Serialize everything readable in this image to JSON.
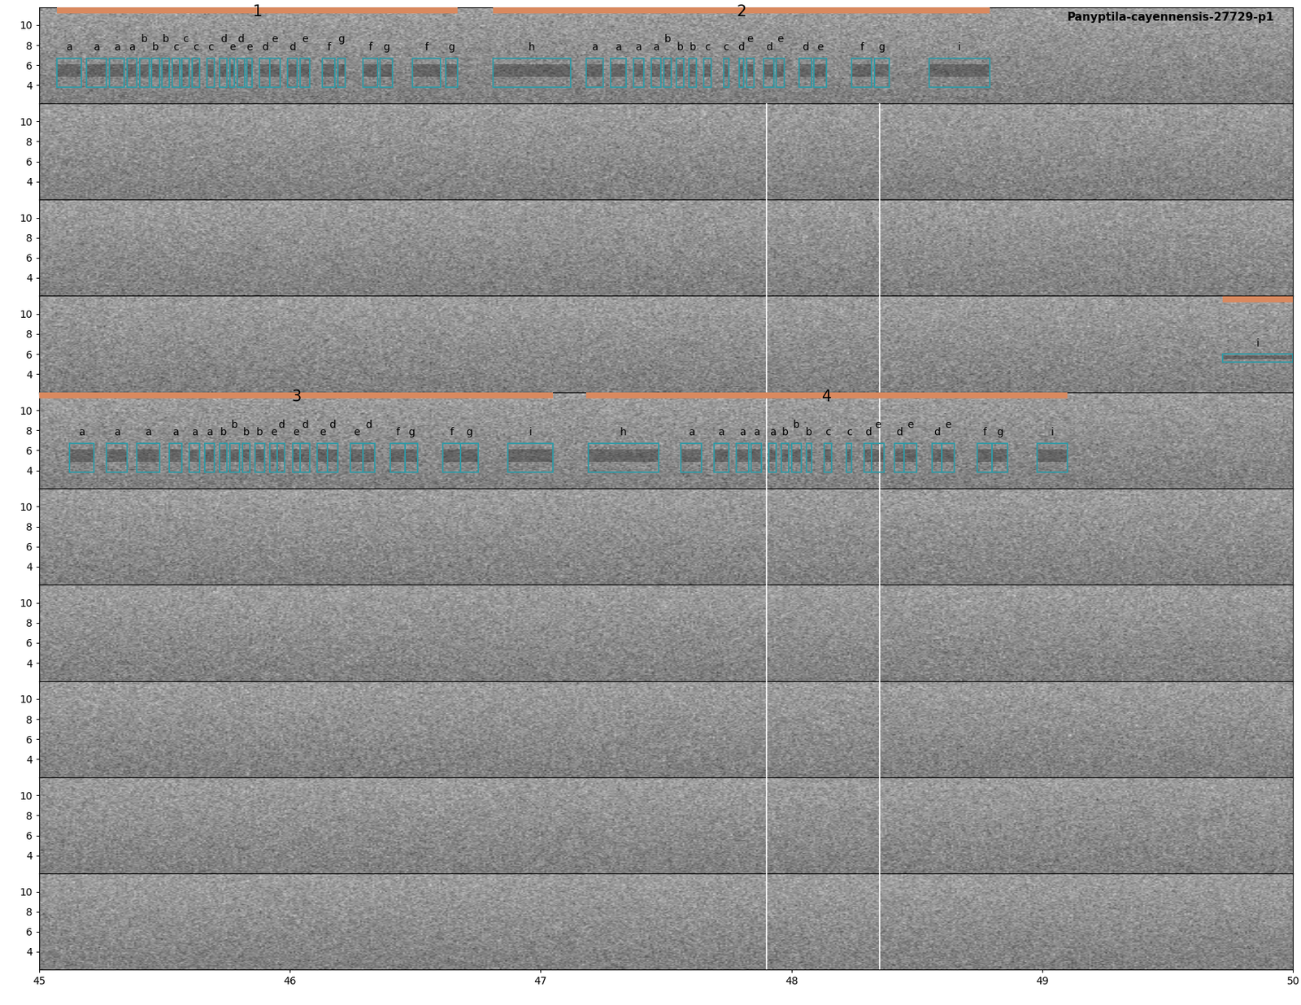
{
  "chart_data": {
    "type": "spectrogram",
    "title": "Panyptila-cayennensis-27729-p1",
    "rows": 10,
    "xlim": [
      45,
      50
    ],
    "xticks": [
      45,
      46,
      47,
      48,
      49,
      50
    ],
    "ylim": [
      2.2,
      11.8
    ],
    "yticks": [
      4,
      6,
      8,
      10
    ],
    "box_freq": [
      3.8,
      6.7
    ],
    "separators": {
      "x": [
        47.9,
        48.35
      ],
      "rows": [
        2,
        3,
        4,
        5,
        6,
        7,
        8,
        9,
        10
      ]
    },
    "bouts": [
      {
        "row": 1,
        "start": 45.07,
        "end": 46.67,
        "label": "1"
      },
      {
        "row": 1,
        "start": 46.81,
        "end": 48.79,
        "label": "2"
      },
      {
        "row": 4,
        "start": 49.72,
        "end": 50.0
      },
      {
        "row": 5,
        "start": 45.0,
        "end": 47.05,
        "label": "3"
      },
      {
        "row": 5,
        "start": 47.18,
        "end": 49.1,
        "label": "4"
      }
    ],
    "syllables": [
      {
        "row": 1,
        "start": 45.07,
        "end": 45.17,
        "label": "a"
      },
      {
        "row": 1,
        "start": 45.19,
        "end": 45.27,
        "label": "a"
      },
      {
        "row": 1,
        "start": 45.28,
        "end": 45.34,
        "label": "a"
      },
      {
        "row": 1,
        "start": 45.35,
        "end": 45.39,
        "label": "a"
      },
      {
        "row": 1,
        "start": 45.4,
        "end": 45.44,
        "label": "b"
      },
      {
        "row": 1,
        "start": 45.45,
        "end": 45.48,
        "label": "b"
      },
      {
        "row": 1,
        "start": 45.49,
        "end": 45.52,
        "label": "b"
      },
      {
        "row": 1,
        "start": 45.53,
        "end": 45.56,
        "label": "c"
      },
      {
        "row": 1,
        "start": 45.57,
        "end": 45.6,
        "label": "c"
      },
      {
        "row": 1,
        "start": 45.61,
        "end": 45.64,
        "label": "c"
      },
      {
        "row": 1,
        "start": 45.67,
        "end": 45.7,
        "label": "c"
      },
      {
        "row": 1,
        "start": 45.72,
        "end": 45.75,
        "label": "d"
      },
      {
        "row": 1,
        "start": 45.76,
        "end": 45.78,
        "label": "e"
      },
      {
        "row": 1,
        "start": 45.79,
        "end": 45.82,
        "label": "d"
      },
      {
        "row": 1,
        "start": 45.83,
        "end": 45.85,
        "label": "e"
      },
      {
        "row": 1,
        "start": 45.88,
        "end": 45.92,
        "label": "d"
      },
      {
        "row": 1,
        "start": 45.92,
        "end": 45.96,
        "label": "e"
      },
      {
        "row": 1,
        "start": 45.99,
        "end": 46.03,
        "label": "d"
      },
      {
        "row": 1,
        "start": 46.04,
        "end": 46.08,
        "label": "e"
      },
      {
        "row": 1,
        "start": 46.13,
        "end": 46.18,
        "label": "f"
      },
      {
        "row": 1,
        "start": 46.19,
        "end": 46.22,
        "label": "g"
      },
      {
        "row": 1,
        "start": 46.29,
        "end": 46.35,
        "label": "f"
      },
      {
        "row": 1,
        "start": 46.36,
        "end": 46.41,
        "label": "g"
      },
      {
        "row": 1,
        "start": 46.49,
        "end": 46.6,
        "label": "f"
      },
      {
        "row": 1,
        "start": 46.62,
        "end": 46.67,
        "label": "g"
      },
      {
        "row": 1,
        "start": 46.81,
        "end": 47.12,
        "label": "h"
      },
      {
        "row": 1,
        "start": 47.18,
        "end": 47.25,
        "label": "a"
      },
      {
        "row": 1,
        "start": 47.28,
        "end": 47.34,
        "label": "a"
      },
      {
        "row": 1,
        "start": 47.37,
        "end": 47.41,
        "label": "a"
      },
      {
        "row": 1,
        "start": 47.44,
        "end": 47.48,
        "label": "a"
      },
      {
        "row": 1,
        "start": 47.49,
        "end": 47.52,
        "label": "b"
      },
      {
        "row": 1,
        "start": 47.54,
        "end": 47.57,
        "label": "b"
      },
      {
        "row": 1,
        "start": 47.59,
        "end": 47.62,
        "label": "b"
      },
      {
        "row": 1,
        "start": 47.65,
        "end": 47.68,
        "label": "c"
      },
      {
        "row": 1,
        "start": 47.73,
        "end": 47.75,
        "label": "c"
      },
      {
        "row": 1,
        "start": 47.79,
        "end": 47.81,
        "label": "d"
      },
      {
        "row": 1,
        "start": 47.82,
        "end": 47.85,
        "label": "e"
      },
      {
        "row": 1,
        "start": 47.89,
        "end": 47.93,
        "label": "d"
      },
      {
        "row": 1,
        "start": 47.94,
        "end": 47.97,
        "label": "e"
      },
      {
        "row": 1,
        "start": 48.03,
        "end": 48.08,
        "label": "d"
      },
      {
        "row": 1,
        "start": 48.09,
        "end": 48.14,
        "label": "e"
      },
      {
        "row": 1,
        "start": 48.24,
        "end": 48.32,
        "label": "f"
      },
      {
        "row": 1,
        "start": 48.33,
        "end": 48.39,
        "label": "g"
      },
      {
        "row": 1,
        "start": 48.55,
        "end": 48.79,
        "label": "i"
      },
      {
        "row": 4,
        "start": 49.72,
        "end": 50.0,
        "label": "i",
        "freq": [
          5.2,
          6.0
        ]
      },
      {
        "row": 5,
        "start": 45.12,
        "end": 45.22,
        "label": "a"
      },
      {
        "row": 5,
        "start": 45.27,
        "end": 45.35,
        "label": "a"
      },
      {
        "row": 5,
        "start": 45.39,
        "end": 45.48,
        "label": "a"
      },
      {
        "row": 5,
        "start": 45.52,
        "end": 45.57,
        "label": "a"
      },
      {
        "row": 5,
        "start": 45.6,
        "end": 45.64,
        "label": "a"
      },
      {
        "row": 5,
        "start": 45.66,
        "end": 45.7,
        "label": "a"
      },
      {
        "row": 5,
        "start": 45.72,
        "end": 45.75,
        "label": "b"
      },
      {
        "row": 5,
        "start": 45.76,
        "end": 45.8,
        "label": "b"
      },
      {
        "row": 5,
        "start": 45.81,
        "end": 45.84,
        "label": "b"
      },
      {
        "row": 5,
        "start": 45.86,
        "end": 45.9,
        "label": "b"
      },
      {
        "row": 5,
        "start": 45.92,
        "end": 45.95,
        "label": "e"
      },
      {
        "row": 5,
        "start": 45.95,
        "end": 45.98,
        "label": "d"
      },
      {
        "row": 5,
        "start": 46.01,
        "end": 46.04,
        "label": "e"
      },
      {
        "row": 5,
        "start": 46.04,
        "end": 46.08,
        "label": "d"
      },
      {
        "row": 5,
        "start": 46.11,
        "end": 46.15,
        "label": "e"
      },
      {
        "row": 5,
        "start": 46.15,
        "end": 46.19,
        "label": "d"
      },
      {
        "row": 5,
        "start": 46.24,
        "end": 46.29,
        "label": "e"
      },
      {
        "row": 5,
        "start": 46.29,
        "end": 46.34,
        "label": "d"
      },
      {
        "row": 5,
        "start": 46.4,
        "end": 46.46,
        "label": "f"
      },
      {
        "row": 5,
        "start": 46.46,
        "end": 46.51,
        "label": "g"
      },
      {
        "row": 5,
        "start": 46.61,
        "end": 46.68,
        "label": "f"
      },
      {
        "row": 5,
        "start": 46.68,
        "end": 46.75,
        "label": "g"
      },
      {
        "row": 5,
        "start": 46.87,
        "end": 47.05,
        "label": "i"
      },
      {
        "row": 5,
        "start": 47.19,
        "end": 47.47,
        "label": "h"
      },
      {
        "row": 5,
        "start": 47.56,
        "end": 47.64,
        "label": "a"
      },
      {
        "row": 5,
        "start": 47.69,
        "end": 47.75,
        "label": "a"
      },
      {
        "row": 5,
        "start": 47.78,
        "end": 47.83,
        "label": "a"
      },
      {
        "row": 5,
        "start": 47.84,
        "end": 47.88,
        "label": "a"
      },
      {
        "row": 5,
        "start": 47.91,
        "end": 47.94,
        "label": "a"
      },
      {
        "row": 5,
        "start": 47.96,
        "end": 47.99,
        "label": "b"
      },
      {
        "row": 5,
        "start": 48.0,
        "end": 48.04,
        "label": "b"
      },
      {
        "row": 5,
        "start": 48.06,
        "end": 48.08,
        "label": "b"
      },
      {
        "row": 5,
        "start": 48.13,
        "end": 48.16,
        "label": "c"
      },
      {
        "row": 5,
        "start": 48.22,
        "end": 48.24,
        "label": "c"
      },
      {
        "row": 5,
        "start": 48.29,
        "end": 48.32,
        "label": "d"
      },
      {
        "row": 5,
        "start": 48.32,
        "end": 48.37,
        "label": "e"
      },
      {
        "row": 5,
        "start": 48.41,
        "end": 48.45,
        "label": "d"
      },
      {
        "row": 5,
        "start": 48.45,
        "end": 48.5,
        "label": "e"
      },
      {
        "row": 5,
        "start": 48.56,
        "end": 48.6,
        "label": "d"
      },
      {
        "row": 5,
        "start": 48.6,
        "end": 48.65,
        "label": "e"
      },
      {
        "row": 5,
        "start": 48.74,
        "end": 48.8,
        "label": "f"
      },
      {
        "row": 5,
        "start": 48.8,
        "end": 48.86,
        "label": "g"
      },
      {
        "row": 5,
        "start": 48.98,
        "end": 49.1,
        "label": "i"
      }
    ]
  }
}
